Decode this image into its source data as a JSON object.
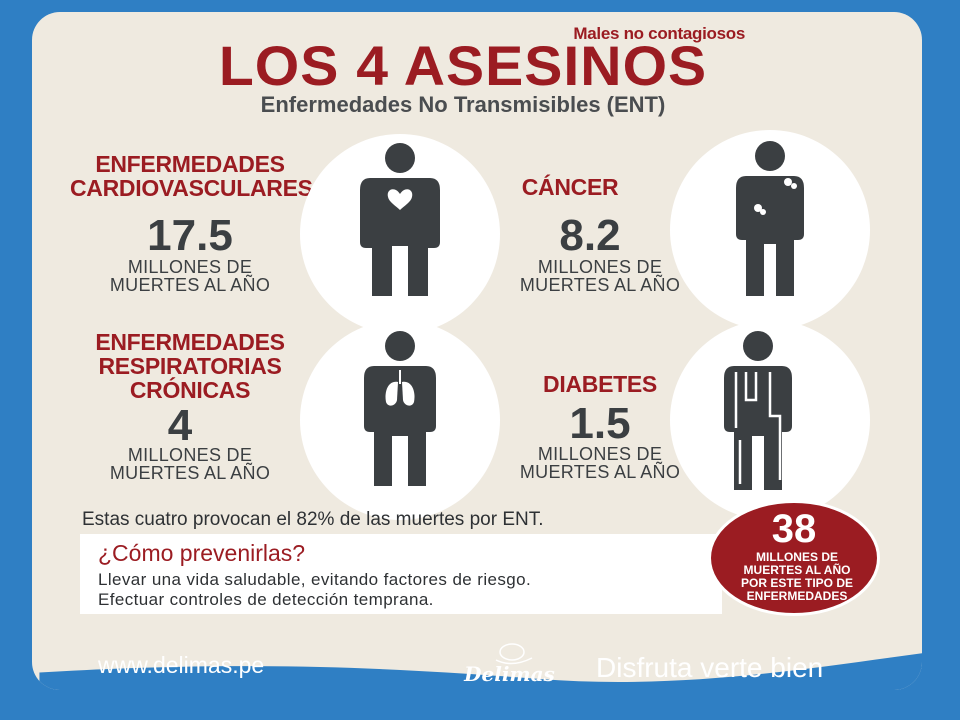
{
  "header": {
    "kicker": "Males no contagiosos",
    "title": "LOS 4 ASESINOS",
    "subtitle": "Enfermedades No Transmisibles (ENT)"
  },
  "diseases": [
    {
      "title_line1": "ENFERMEDADES",
      "title_line2": "CARDIOVASCULARES",
      "value": "17.5",
      "unit_line1": "MILLONES DE",
      "unit_line2": "MUERTES AL AÑO",
      "icon": "heart-person-icon"
    },
    {
      "title_line1": "CÁNCER",
      "value": "8.2",
      "unit_line1": "MILLONES DE",
      "unit_line2": "MUERTES AL AÑO",
      "icon": "cancer-person-icon"
    },
    {
      "title_line1": "ENFERMEDADES",
      "title_line2": "RESPIRATORIAS",
      "title_line3": "CRÓNICAS",
      "value": "4",
      "unit_line1": "MILLONES DE",
      "unit_line2": "MUERTES AL AÑO",
      "icon": "lungs-person-icon"
    },
    {
      "title_line1": "DIABETES",
      "value": "1.5",
      "unit_line1": "MILLONES DE",
      "unit_line2": "MUERTES AL AÑO",
      "icon": "diabetes-person-icon"
    }
  ],
  "summary": "Estas cuatro provocan el 82% de las muertes por ENT.",
  "prevention": {
    "title": "¿Cómo prevenirlas?",
    "line1": "Llevar una vida saludable, evitando factores de riesgo.",
    "line2": "Efectuar controles de detección temprana."
  },
  "badge": {
    "number": "38",
    "line1": "MILLONES DE",
    "line2": "MUERTES AL AÑO",
    "line3": "POR ESTE TIPO DE",
    "line4": "ENFERMEDADES"
  },
  "footer": {
    "url": "www.delimas.pe",
    "logo": "Delimas",
    "slogan": "Disfruta verte bien"
  },
  "colors": {
    "accent": "#9b1c22",
    "frame": "#2f7fc4",
    "background": "#efeae0",
    "figure": "#3b3f42"
  }
}
